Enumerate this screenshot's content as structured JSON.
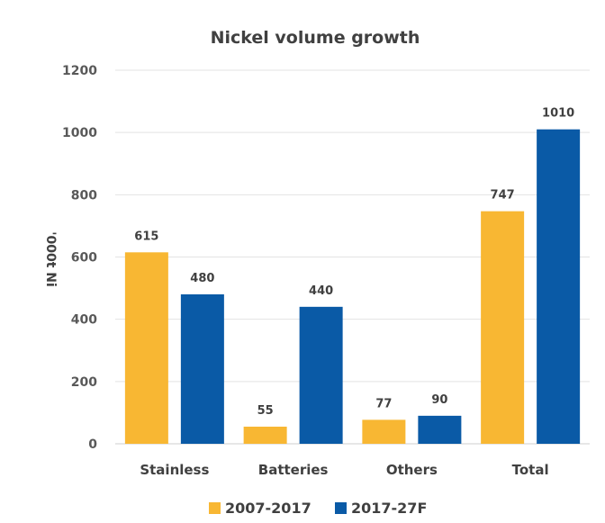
{
  "chart_data": {
    "type": "bar",
    "title": "Nickel volume growth",
    "ylabel": "'000t Ni",
    "xlabel": "",
    "categories": [
      "Stainless",
      "Batteries",
      "Others",
      "Total"
    ],
    "series": [
      {
        "name": "2007-2017",
        "values": [
          615,
          55,
          77,
          747
        ],
        "color": "#f8b733"
      },
      {
        "name": "2017-27F",
        "values": [
          480,
          440,
          90,
          1010
        ],
        "color": "#0a5aa6"
      }
    ],
    "ylim": [
      0,
      1200
    ],
    "yticks": [
      0,
      200,
      400,
      600,
      800,
      1000,
      1200
    ],
    "grid": true,
    "legend": "bottom"
  }
}
